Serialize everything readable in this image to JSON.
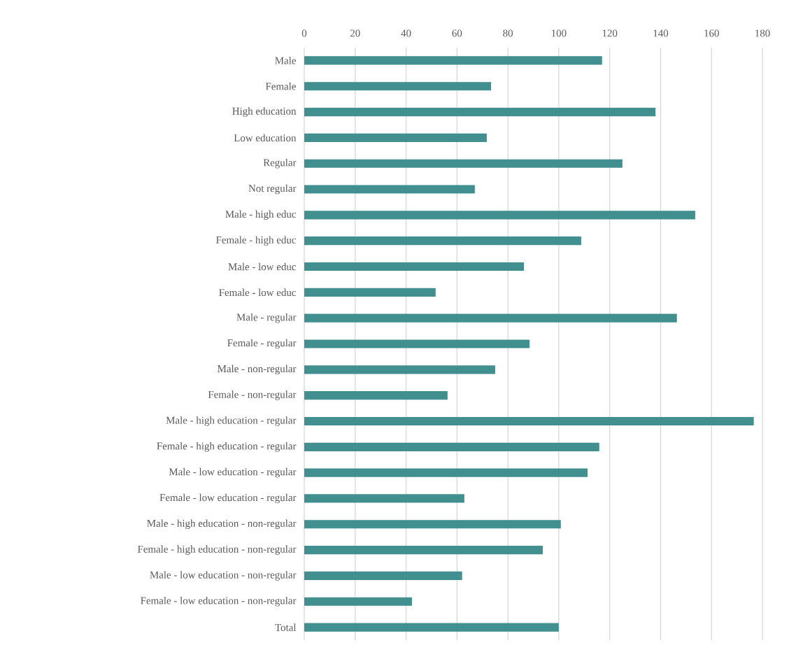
{
  "chart_data": {
    "type": "bar",
    "orientation": "horizontal",
    "categories": [
      "Male",
      "Female",
      "High education",
      "Low education",
      "Regular",
      "Not regular",
      "Male - high educ",
      "Female - high educ",
      "Male - low educ",
      "Female - low educ",
      "Male - regular",
      "Female - regular",
      "Male - non-regular",
      "Female - non-regular",
      "Male - high education - regular",
      "Female - high education - regular",
      "Male - low education - regular",
      "Female - low education - regular",
      "Male - high education - non-regular",
      "Female - high education - non-regular",
      "Male - low education - non-regular",
      "Female - low education - non-regular",
      "Total"
    ],
    "values": [
      117,
      73.4,
      138,
      71.7,
      125,
      67,
      153.6,
      108.8,
      86.3,
      51.6,
      146.4,
      88.5,
      75,
      56.3,
      176.6,
      115.9,
      111.3,
      62.9,
      100.8,
      93.7,
      62,
      42.3,
      100
    ],
    "color": "#428f8f",
    "xlim": [
      0,
      180
    ],
    "xticks": [
      0,
      20,
      40,
      60,
      80,
      100,
      120,
      140,
      160,
      180
    ],
    "grid": "x"
  }
}
